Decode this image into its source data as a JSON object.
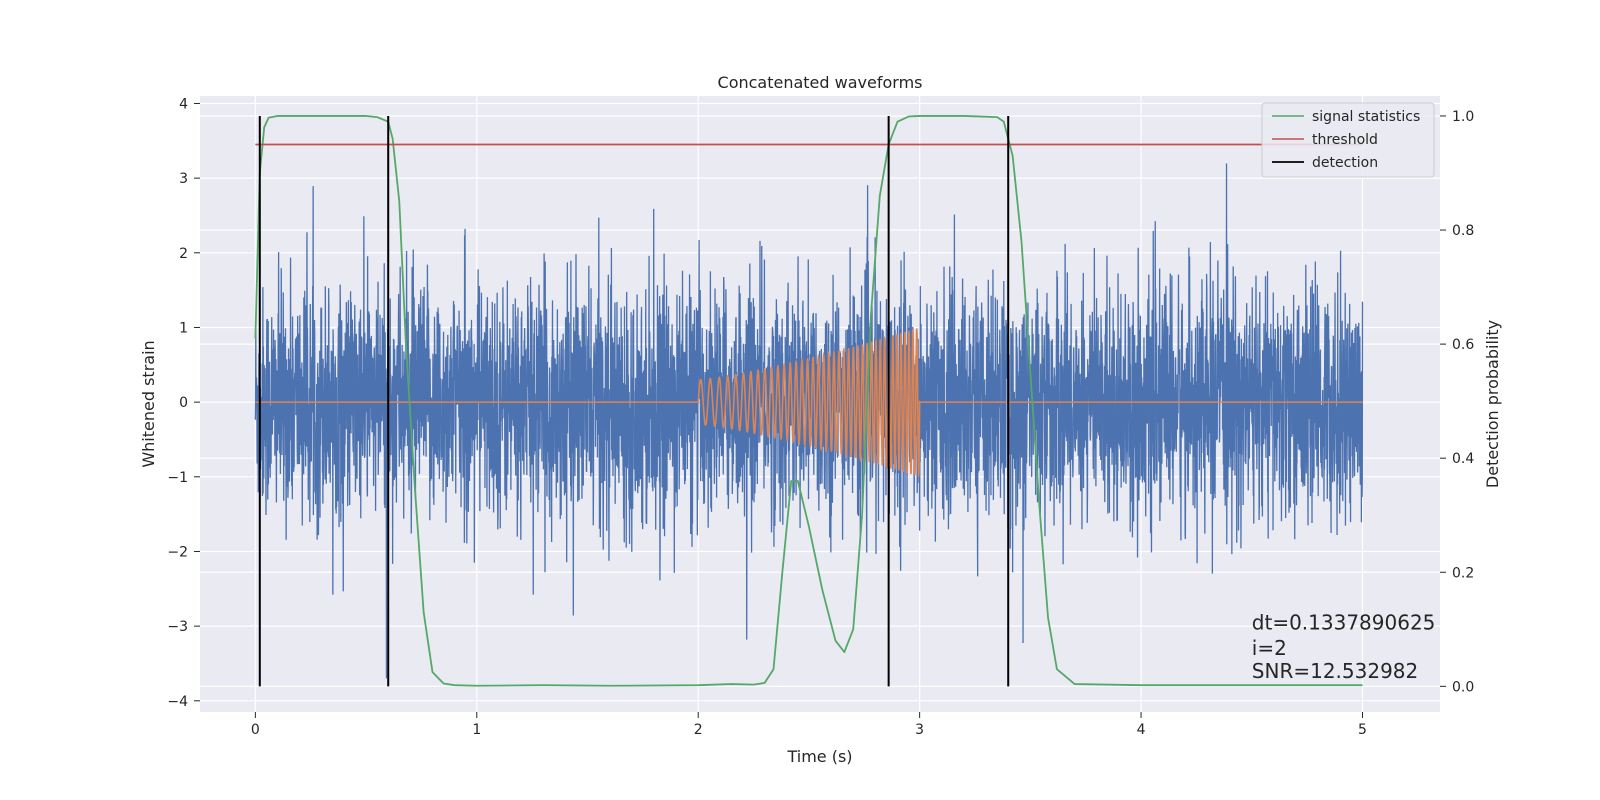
{
  "chart_data": {
    "type": "line",
    "title": "Concatenated waveforms",
    "xlabel": "Time (s)",
    "ylabel": "Whitened strain",
    "y2label": "Detection probability",
    "xlim": [
      -0.25,
      5.35
    ],
    "ylim": [
      -4.15,
      4.1
    ],
    "y2lim": [
      -0.045,
      1.035
    ],
    "xticks": [
      0,
      1,
      2,
      3,
      4,
      5
    ],
    "yticks": [
      -4,
      -3,
      -2,
      -1,
      0,
      1,
      2,
      3,
      4
    ],
    "y2ticks": [
      0.0,
      0.2,
      0.4,
      0.6,
      0.8,
      1.0
    ],
    "y2ticklabels": [
      "0.0",
      "0.2",
      "0.4",
      "0.6",
      "0.8",
      "1.0"
    ],
    "grid": true,
    "legend_position": "top-right",
    "noise": {
      "axis": "left",
      "color": "#4c72b0",
      "x_range": [
        0,
        5
      ],
      "approx_std": 0.95,
      "max": 3.75,
      "min": -3.7
    },
    "chirp": {
      "axis": "left",
      "color": "#dd8452",
      "baseline": 0,
      "start": 2.0,
      "end": 3.0,
      "x_range": [
        0,
        5
      ],
      "amplitude_start": 0.3,
      "amplitude_end": 1.0,
      "cycles": 40
    },
    "series": [
      {
        "name": "signal statistics",
        "axis": "right",
        "color": "#55a868",
        "x": [
          0.0,
          0.02,
          0.04,
          0.06,
          0.1,
          0.2,
          0.5,
          0.55,
          0.6,
          0.62,
          0.65,
          0.68,
          0.72,
          0.76,
          0.8,
          0.85,
          0.9,
          1.0,
          1.3,
          1.6,
          2.0,
          2.15,
          2.25,
          2.3,
          2.34,
          2.38,
          2.42,
          2.45,
          2.5,
          2.56,
          2.62,
          2.66,
          2.7,
          2.74,
          2.78,
          2.82,
          2.86,
          2.9,
          2.95,
          3.0,
          3.2,
          3.35,
          3.38,
          3.42,
          3.46,
          3.5,
          3.54,
          3.58,
          3.62,
          3.7,
          4.0,
          4.5,
          5.0
        ],
        "y": [
          0.61,
          0.9,
          0.98,
          0.997,
          1.0,
          1.0,
          1.0,
          0.998,
          0.99,
          0.96,
          0.85,
          0.6,
          0.35,
          0.13,
          0.025,
          0.005,
          0.002,
          0.001,
          0.002,
          0.001,
          0.002,
          0.004,
          0.003,
          0.006,
          0.03,
          0.2,
          0.36,
          0.36,
          0.28,
          0.17,
          0.08,
          0.06,
          0.1,
          0.3,
          0.65,
          0.86,
          0.95,
          0.99,
          0.999,
          1.0,
          1.0,
          0.998,
          0.99,
          0.93,
          0.78,
          0.55,
          0.32,
          0.12,
          0.03,
          0.004,
          0.002,
          0.002,
          0.002
        ]
      },
      {
        "name": "threshold",
        "axis": "right",
        "color": "#c44e52",
        "x": [
          0,
          5
        ],
        "y": [
          0.95,
          0.95
        ]
      },
      {
        "name": "detection",
        "axis": "right",
        "color": "#000000",
        "type": "vlines",
        "x": [
          0.02,
          0.6,
          2.86,
          3.4
        ],
        "ymin": 0,
        "ymax": 1
      }
    ],
    "annotations": [
      {
        "text": "dt=0.1337890625",
        "x": 4.5,
        "y2": 0.1
      },
      {
        "text": " i=2",
        "x": 4.5,
        "y2": 0.055
      },
      {
        "text": "SNR=12.532982",
        "x": 4.5,
        "y2": 0.015
      }
    ]
  }
}
